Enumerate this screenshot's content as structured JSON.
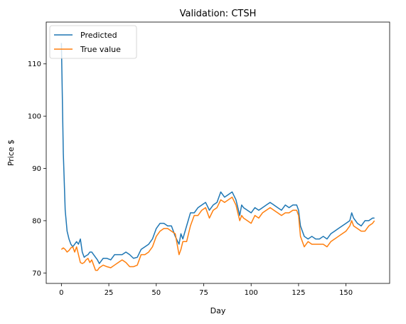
{
  "chart_data": {
    "type": "line",
    "title": "Validation: CTSH",
    "xlabel": "Day",
    "ylabel": "Price $",
    "xlim": [
      -8,
      173
    ],
    "ylim": [
      68,
      118
    ],
    "xticks": [
      0,
      25,
      50,
      75,
      100,
      125,
      150
    ],
    "yticks": [
      70,
      80,
      90,
      100,
      110
    ],
    "grid": false,
    "legend_position": "top-left",
    "series": [
      {
        "name": "Predicted",
        "color": "#1f77b4",
        "x": [
          0,
          1,
          2,
          3,
          4,
          5,
          6,
          7,
          8,
          9,
          10,
          11,
          12,
          13,
          14,
          15,
          16,
          17,
          18,
          19,
          20,
          22,
          24,
          26,
          28,
          30,
          32,
          34,
          36,
          38,
          40,
          42,
          44,
          46,
          48,
          50,
          52,
          54,
          56,
          58,
          60,
          62,
          63,
          64,
          66,
          68,
          70,
          72,
          74,
          76,
          78,
          80,
          82,
          84,
          86,
          88,
          90,
          92,
          94,
          95,
          96,
          98,
          100,
          102,
          104,
          106,
          108,
          110,
          112,
          114,
          116,
          118,
          120,
          122,
          124,
          125,
          126,
          128,
          130,
          132,
          134,
          136,
          138,
          140,
          142,
          144,
          146,
          148,
          150,
          152,
          153,
          154,
          156,
          158,
          160,
          162,
          164,
          165
        ],
        "y": [
          114,
          93,
          82,
          78,
          76.5,
          75.5,
          75,
          75.5,
          76,
          75.5,
          76.5,
          74,
          73,
          73.3,
          73.5,
          74,
          74,
          73.5,
          73,
          72.5,
          71.8,
          72.8,
          72.8,
          72.5,
          73.5,
          73.5,
          73.5,
          74,
          73.5,
          72.8,
          73,
          74.5,
          75,
          75.5,
          76.5,
          78.5,
          79.5,
          79.5,
          79,
          79,
          77,
          75.5,
          77.5,
          76.5,
          79,
          81.5,
          81.5,
          82.5,
          83,
          83.5,
          82,
          83,
          83.5,
          85.5,
          84.5,
          85,
          85.5,
          84,
          81,
          83,
          82.5,
          82,
          81.5,
          82.5,
          82,
          82.5,
          83,
          83.5,
          83,
          82.5,
          82,
          83,
          82.5,
          83,
          83,
          82,
          79,
          77,
          76.5,
          77,
          76.5,
          76.5,
          77,
          76.5,
          77.5,
          78,
          78.5,
          79,
          79.5,
          80,
          81.5,
          80.5,
          79.5,
          79,
          80,
          80,
          80.5,
          80.5
        ]
      },
      {
        "name": "True value",
        "color": "#ff7f0e",
        "x": [
          0,
          1,
          2,
          3,
          4,
          5,
          6,
          7,
          8,
          9,
          10,
          11,
          12,
          13,
          14,
          15,
          16,
          17,
          18,
          19,
          20,
          22,
          24,
          26,
          28,
          30,
          32,
          34,
          36,
          38,
          40,
          42,
          44,
          46,
          48,
          50,
          52,
          54,
          56,
          58,
          60,
          62,
          63,
          64,
          66,
          68,
          70,
          72,
          74,
          76,
          78,
          80,
          82,
          84,
          86,
          88,
          90,
          92,
          94,
          95,
          96,
          98,
          100,
          102,
          104,
          106,
          108,
          110,
          112,
          114,
          116,
          118,
          120,
          122,
          124,
          125,
          126,
          128,
          130,
          132,
          134,
          136,
          138,
          140,
          142,
          144,
          146,
          148,
          150,
          152,
          153,
          154,
          156,
          158,
          160,
          162,
          164,
          165
        ],
        "y": [
          74.5,
          74.8,
          74.5,
          74,
          74.3,
          74.8,
          75,
          74,
          75,
          73.5,
          72,
          71.8,
          72,
          72.5,
          72.8,
          72,
          72.5,
          71.5,
          70.5,
          70.5,
          71,
          71.5,
          71.2,
          71,
          71.5,
          72,
          72.5,
          72,
          71.2,
          71.2,
          71.5,
          73.5,
          73.5,
          74,
          75,
          77,
          78,
          78.5,
          78.5,
          78,
          77.5,
          73.5,
          74.5,
          76,
          76,
          79,
          81,
          81,
          82,
          82.5,
          80.5,
          82,
          82.5,
          84,
          83.5,
          84,
          84.5,
          83,
          80,
          81,
          80.5,
          80,
          79.5,
          81,
          80.5,
          81.5,
          82,
          82.5,
          82,
          81.5,
          81,
          81.5,
          81.5,
          82,
          82,
          81,
          77,
          75,
          76,
          75.5,
          75.5,
          75.5,
          75.5,
          75,
          76,
          76.5,
          77,
          77.5,
          78,
          79,
          80,
          79,
          78.5,
          78,
          78,
          79,
          79.5,
          80
        ]
      }
    ]
  }
}
